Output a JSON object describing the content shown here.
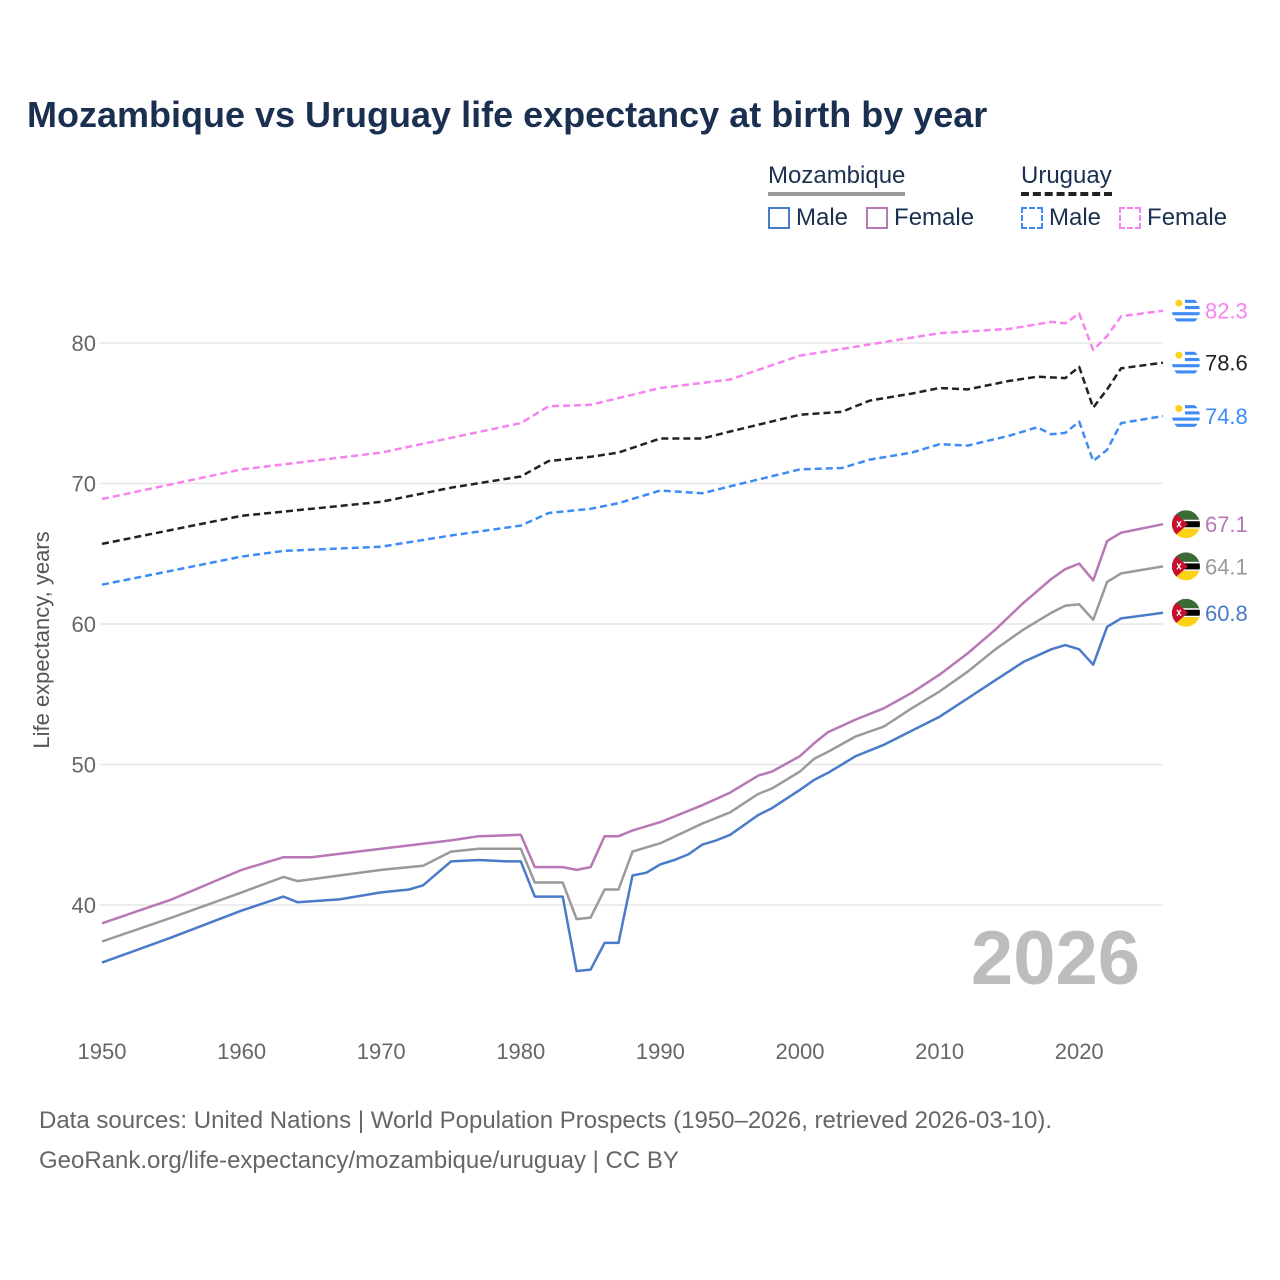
{
  "chart_data": {
    "type": "line",
    "title": "Mozambique vs Uruguay life expectancy at birth by year",
    "xlabel": "",
    "ylabel": "Life expectancy, years",
    "xlim": [
      1950,
      2026
    ],
    "ylim": [
      34,
      84
    ],
    "x_ticks": [
      1950,
      1960,
      1970,
      1980,
      1990,
      2000,
      2010,
      2020
    ],
    "y_ticks": [
      40,
      50,
      60,
      70,
      80
    ],
    "grid": true,
    "current_year": "2026",
    "legend": {
      "placement": "top-right",
      "groups": [
        {
          "name": "Mozambique",
          "items": [
            "Male",
            "Female"
          ]
        },
        {
          "name": "Uruguay",
          "items": [
            "Male",
            "Female"
          ]
        }
      ]
    },
    "series": [
      {
        "name": "Uruguay Female",
        "country": "Uruguay",
        "color": "#f683ef",
        "dashed": true,
        "end_label": "82.3",
        "x": [
          1950,
          1960,
          1970,
          1980,
          1982,
          1985,
          1990,
          1995,
          2000,
          2005,
          2010,
          2015,
          2018,
          2019,
          2020,
          2021,
          2022,
          2023,
          2026
        ],
        "y": [
          68.9,
          71.0,
          72.2,
          74.3,
          75.5,
          75.6,
          76.8,
          77.4,
          79.1,
          79.9,
          80.7,
          81.0,
          81.5,
          81.4,
          82.1,
          79.5,
          80.5,
          81.9,
          82.3
        ]
      },
      {
        "name": "Uruguay",
        "country": "Uruguay",
        "color": "#222222",
        "dashed": true,
        "end_label": "78.6",
        "x": [
          1950,
          1960,
          1963,
          1970,
          1975,
          1980,
          1982,
          1985,
          1987,
          1990,
          1993,
          1995,
          2000,
          2003,
          2005,
          2008,
          2010,
          2012,
          2015,
          2017,
          2019,
          2020,
          2021,
          2022,
          2023,
          2026
        ],
        "y": [
          65.7,
          67.7,
          68.0,
          68.7,
          69.7,
          70.5,
          71.6,
          71.9,
          72.2,
          73.2,
          73.2,
          73.7,
          74.9,
          75.1,
          75.9,
          76.4,
          76.8,
          76.7,
          77.3,
          77.6,
          77.5,
          78.3,
          75.4,
          76.7,
          78.2,
          78.6
        ]
      },
      {
        "name": "Uruguay Male",
        "country": "Uruguay",
        "color": "#3e8bf5",
        "dashed": true,
        "end_label": "74.8",
        "x": [
          1950,
          1960,
          1963,
          1970,
          1975,
          1980,
          1982,
          1985,
          1987,
          1990,
          1993,
          1995,
          2000,
          2003,
          2005,
          2008,
          2010,
          2012,
          2015,
          2017,
          2018,
          2019,
          2020,
          2021,
          2022,
          2023,
          2026
        ],
        "y": [
          62.8,
          64.8,
          65.2,
          65.5,
          66.3,
          67.0,
          67.9,
          68.2,
          68.6,
          69.5,
          69.3,
          69.8,
          71.0,
          71.1,
          71.7,
          72.2,
          72.8,
          72.7,
          73.4,
          74.0,
          73.5,
          73.6,
          74.4,
          71.6,
          72.4,
          74.3,
          74.8
        ]
      },
      {
        "name": "Mozambique Female",
        "country": "Mozambique",
        "color": "#b778b5",
        "dashed": false,
        "end_label": "67.1",
        "x": [
          1950,
          1955,
          1960,
          1963,
          1965,
          1970,
          1975,
          1977,
          1980,
          1981,
          1983,
          1984,
          1985,
          1986,
          1987,
          1988,
          1990,
          1993,
          1995,
          1997,
          1998,
          2000,
          2001,
          2002,
          2004,
          2006,
          2008,
          2010,
          2012,
          2014,
          2016,
          2018,
          2019,
          2020,
          2021,
          2022,
          2023,
          2026
        ],
        "y": [
          38.7,
          40.4,
          42.5,
          43.4,
          43.4,
          44.0,
          44.6,
          44.9,
          45.0,
          42.7,
          42.7,
          42.5,
          42.7,
          44.9,
          44.9,
          45.3,
          45.9,
          47.1,
          48.0,
          49.2,
          49.5,
          50.6,
          51.5,
          52.3,
          53.2,
          54.0,
          55.1,
          56.4,
          57.9,
          59.6,
          61.5,
          63.2,
          63.9,
          64.3,
          63.1,
          65.9,
          66.5,
          67.1
        ]
      },
      {
        "name": "Mozambique",
        "country": "Mozambique",
        "color": "#9a9a9a",
        "dashed": false,
        "end_label": "64.1",
        "x": [
          1950,
          1955,
          1960,
          1963,
          1964,
          1967,
          1970,
          1973,
          1975,
          1977,
          1980,
          1981,
          1983,
          1984,
          1985,
          1986,
          1987,
          1988,
          1990,
          1993,
          1995,
          1997,
          1998,
          2000,
          2001,
          2002,
          2004,
          2006,
          2008,
          2010,
          2012,
          2014,
          2016,
          2018,
          2019,
          2020,
          2021,
          2022,
          2023,
          2026
        ],
        "y": [
          37.4,
          39.1,
          40.9,
          42.0,
          41.7,
          42.1,
          42.5,
          42.8,
          43.8,
          44.0,
          44.0,
          41.6,
          41.6,
          39.0,
          39.1,
          41.1,
          41.1,
          43.8,
          44.4,
          45.8,
          46.6,
          47.9,
          48.3,
          49.5,
          50.4,
          50.9,
          52.0,
          52.7,
          54.0,
          55.2,
          56.6,
          58.2,
          59.6,
          60.8,
          61.3,
          61.4,
          60.3,
          63.0,
          63.6,
          64.1
        ]
      },
      {
        "name": "Mozambique Male",
        "country": "Mozambique",
        "color": "#4a7bc8",
        "dashed": false,
        "end_label": "60.8",
        "x": [
          1950,
          1955,
          1960,
          1963,
          1964,
          1967,
          1970,
          1972,
          1973,
          1975,
          1977,
          1979,
          1980,
          1981,
          1983,
          1984,
          1985,
          1986,
          1987,
          1988,
          1989,
          1990,
          1991,
          1992,
          1993,
          1994,
          1995,
          1997,
          1998,
          2000,
          2001,
          2002,
          2004,
          2006,
          2008,
          2010,
          2012,
          2014,
          2016,
          2018,
          2019,
          2020,
          2021,
          2022,
          2023,
          2026
        ],
        "y": [
          35.9,
          37.7,
          39.6,
          40.6,
          40.2,
          40.4,
          40.9,
          41.1,
          41.4,
          43.1,
          43.2,
          43.1,
          43.1,
          40.6,
          40.6,
          35.3,
          35.4,
          37.3,
          37.3,
          42.1,
          42.3,
          42.9,
          43.2,
          43.6,
          44.3,
          44.6,
          45.0,
          46.4,
          46.9,
          48.2,
          48.9,
          49.4,
          50.6,
          51.4,
          52.4,
          53.4,
          54.7,
          56.0,
          57.3,
          58.2,
          58.5,
          58.2,
          57.1,
          59.8,
          60.4,
          60.8
        ]
      }
    ]
  },
  "colors": {
    "title": "#1b3050",
    "uruguay_flag_blue": "#3e8bf5",
    "uruguay_flag_sun": "#fcd116",
    "mozambique_flag_green": "#3a6b35",
    "mozambique_flag_yellow": "#fcd116",
    "mozambique_flag_red": "#c8102e"
  },
  "footer": {
    "line1": "Data sources: United Nations | World Population Prospects (1950–2026, retrieved 2026-03-10).",
    "line2": "GeoRank.org/life-expectancy/mozambique/uruguay | CC BY"
  }
}
